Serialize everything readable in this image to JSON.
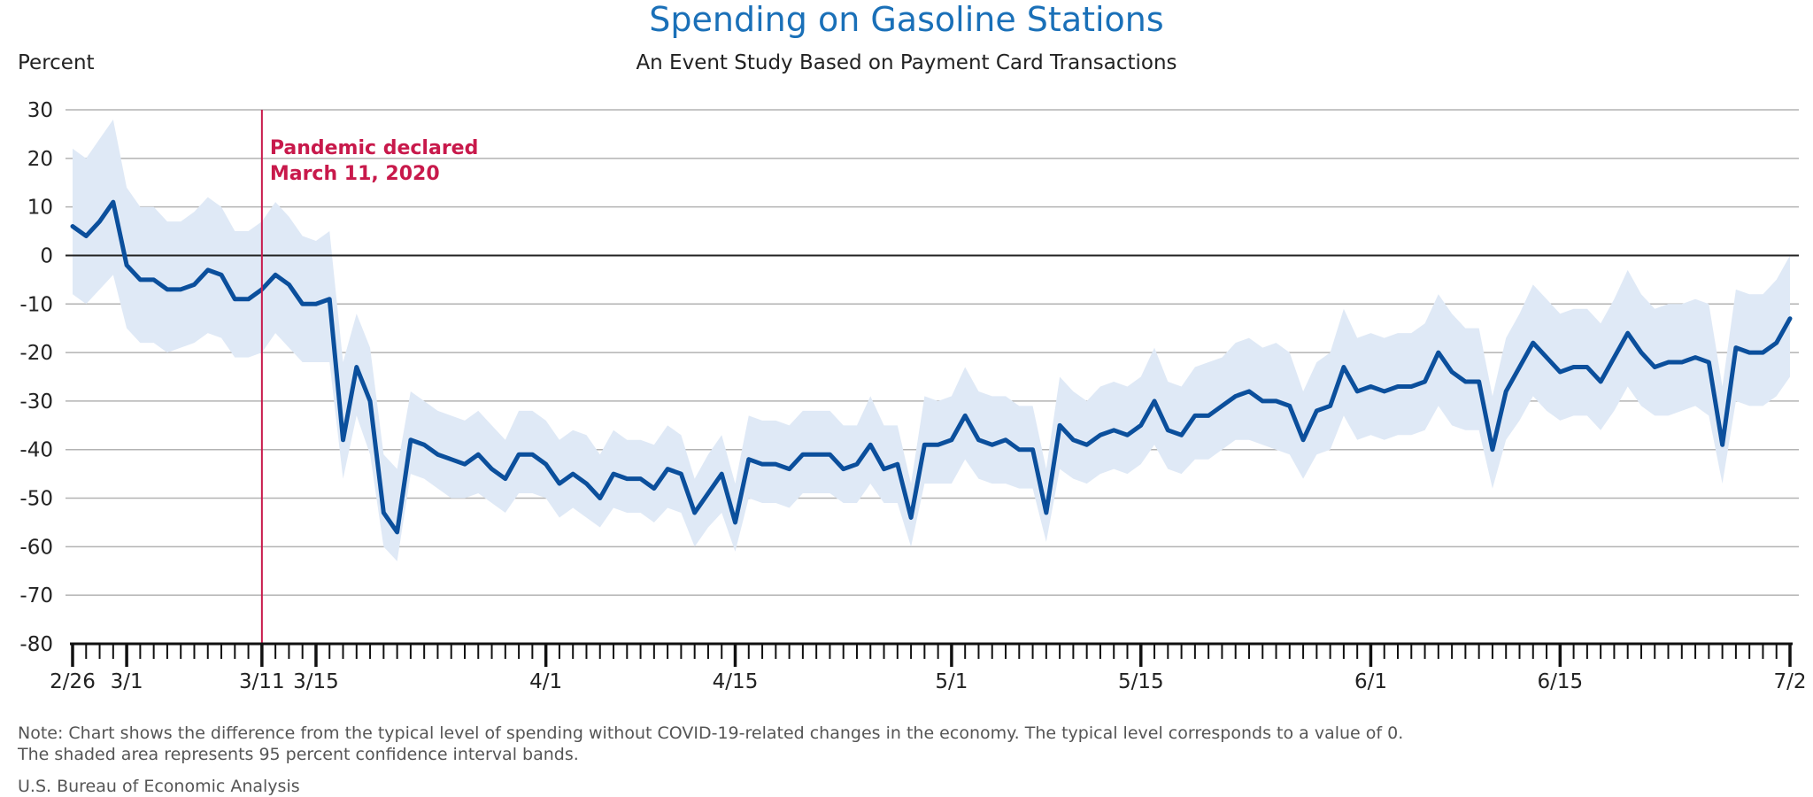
{
  "chart_data": {
    "type": "line",
    "title": "Spending on Gasoline Stations",
    "subtitle": "An Event Study Based on Payment Card Transactions",
    "ylabel": "Percent",
    "ylim": [
      -80,
      30
    ],
    "yticks": [
      30,
      20,
      10,
      0,
      -10,
      -20,
      -30,
      -40,
      -50,
      -60,
      -70,
      -80
    ],
    "x_start_date": "2020-02-26",
    "x_end_date": "2020-07-02",
    "xtick_labels": [
      {
        "label": "2/26",
        "day": 0
      },
      {
        "label": "3/1",
        "day": 4
      },
      {
        "label": "3/11",
        "day": 14
      },
      {
        "label": "3/15",
        "day": 18
      },
      {
        "label": "4/1",
        "day": 35
      },
      {
        "label": "4/15",
        "day": 49
      },
      {
        "label": "5/1",
        "day": 65
      },
      {
        "label": "5/15",
        "day": 79
      },
      {
        "label": "6/1",
        "day": 96
      },
      {
        "label": "6/15",
        "day": 110
      },
      {
        "label": "7/2",
        "day": 127
      }
    ],
    "annotation": {
      "lines": [
        "Pandemic declared",
        "March 11, 2020"
      ],
      "day": 14
    },
    "grid": true,
    "zero_line": true,
    "colors": {
      "line": "#0b4f9c",
      "band": "#dfe9f6",
      "grid": "#b3b3b3",
      "zero": "#222222",
      "annotation": "#c8194b",
      "title": "#1a70b8"
    },
    "series": [
      {
        "values": [
          6,
          4,
          7,
          11,
          -2,
          -5,
          -5,
          -7,
          -7,
          -6,
          -3,
          -4,
          -9,
          -9,
          -7,
          -4,
          -6,
          -10,
          -10,
          -9,
          -38,
          -23,
          -30,
          -53,
          -57,
          -38,
          -39,
          -41,
          -42,
          -43,
          -41,
          -44,
          -46,
          -41,
          -41,
          -43,
          -47,
          -45,
          -47,
          -50,
          -45,
          -46,
          -46,
          -48,
          -44,
          -45,
          -53,
          -49,
          -45,
          -55,
          -42,
          -43,
          -43,
          -44,
          -41,
          -41,
          -41,
          -44,
          -43,
          -39,
          -44,
          -43,
          -54,
          -39,
          -39,
          -38,
          -33,
          -38,
          -39,
          -38,
          -40,
          -40,
          -53,
          -35,
          -38,
          -39,
          -37,
          -36,
          -37,
          -35,
          -30,
          -36,
          -37,
          -33,
          -33,
          -31,
          -29,
          -28,
          -30,
          -30,
          -31,
          -38,
          -32,
          -31,
          -23,
          -28,
          -27,
          -28,
          -27,
          -27,
          -26,
          -20,
          -24,
          -26,
          -26,
          -40,
          -28,
          -23,
          -18,
          -21,
          -24,
          -23,
          -23,
          -26,
          -21,
          -16,
          -20,
          -23,
          -22,
          -22,
          -21,
          -22,
          -39,
          -19,
          -20,
          -20,
          -18,
          -13
        ],
        "ci_upper": [
          22,
          20,
          24,
          28,
          14,
          10,
          10,
          7,
          7,
          9,
          12,
          10,
          5,
          5,
          7,
          11,
          8,
          4,
          3,
          5,
          -22,
          -12,
          -19,
          -41,
          -44,
          -28,
          -30,
          -32,
          -33,
          -34,
          -32,
          -35,
          -38,
          -32,
          -32,
          -34,
          -38,
          -36,
          -37,
          -41,
          -36,
          -38,
          -38,
          -39,
          -35,
          -37,
          -46,
          -41,
          -37,
          -47,
          -33,
          -34,
          -34,
          -35,
          -32,
          -32,
          -32,
          -35,
          -35,
          -29,
          -35,
          -35,
          -47,
          -29,
          -30,
          -29,
          -23,
          -28,
          -29,
          -29,
          -31,
          -31,
          -44,
          -25,
          -28,
          -30,
          -27,
          -26,
          -27,
          -25,
          -19,
          -26,
          -27,
          -23,
          -22,
          -21,
          -18,
          -17,
          -19,
          -18,
          -20,
          -28,
          -22,
          -20,
          -11,
          -17,
          -16,
          -17,
          -16,
          -16,
          -14,
          -8,
          -12,
          -15,
          -15,
          -29,
          -17,
          -12,
          -6,
          -9,
          -12,
          -11,
          -11,
          -14,
          -9,
          -3,
          -8,
          -11,
          -10,
          -10,
          -9,
          -10,
          -27,
          -7,
          -8,
          -8,
          -5,
          0
        ],
        "ci_lower": [
          -8,
          -10,
          -7,
          -4,
          -15,
          -18,
          -18,
          -20,
          -19,
          -18,
          -16,
          -17,
          -21,
          -21,
          -20,
          -16,
          -19,
          -22,
          -22,
          -22,
          -46,
          -33,
          -41,
          -60,
          -63,
          -45,
          -46,
          -48,
          -50,
          -50,
          -49,
          -51,
          -53,
          -49,
          -49,
          -50,
          -54,
          -52,
          -54,
          -56,
          -52,
          -53,
          -53,
          -55,
          -52,
          -53,
          -60,
          -56,
          -53,
          -61,
          -50,
          -51,
          -51,
          -52,
          -49,
          -49,
          -49,
          -51,
          -51,
          -47,
          -51,
          -51,
          -60,
          -47,
          -47,
          -47,
          -42,
          -46,
          -47,
          -47,
          -48,
          -48,
          -59,
          -44,
          -46,
          -47,
          -45,
          -44,
          -45,
          -43,
          -39,
          -44,
          -45,
          -42,
          -42,
          -40,
          -38,
          -38,
          -39,
          -40,
          -41,
          -46,
          -41,
          -40,
          -33,
          -38,
          -37,
          -38,
          -37,
          -37,
          -36,
          -31,
          -35,
          -36,
          -36,
          -48,
          -38,
          -34,
          -29,
          -32,
          -34,
          -33,
          -33,
          -36,
          -32,
          -27,
          -31,
          -33,
          -33,
          -32,
          -31,
          -33,
          -47,
          -30,
          -31,
          -31,
          -29,
          -25
        ]
      }
    ]
  },
  "note_line1": "Note: Chart shows the difference from the typical level of spending without COVID-19-related changes in the economy. The typical level corresponds to a value of 0.",
  "note_line2": "The shaded area represents 95 percent confidence interval bands.",
  "source": "U.S. Bureau of Economic Analysis"
}
